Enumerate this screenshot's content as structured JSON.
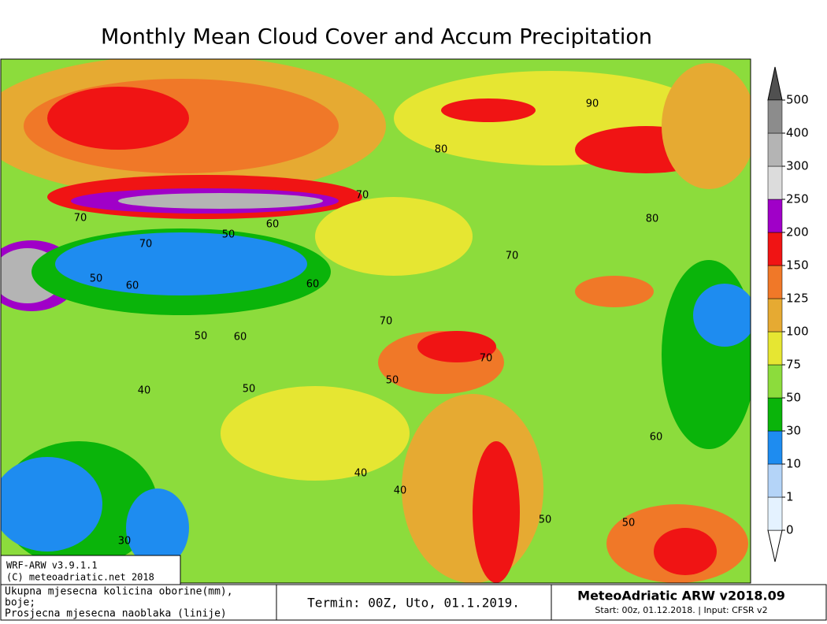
{
  "title": "Monthly Mean Cloud Cover and Accum Precipitation",
  "colorbar": {
    "ticks": [
      0,
      1,
      10,
      30,
      50,
      75,
      100,
      125,
      150,
      200,
      250,
      300,
      400,
      500
    ],
    "colors": [
      "#e4f2ff",
      "#b4d4f8",
      "#1e8cf0",
      "#0ab40a",
      "#8cdc3c",
      "#e6e632",
      "#e6aa32",
      "#f07828",
      "#f01414",
      "#a000c8",
      "#dcdcdc",
      "#b4b4b4",
      "#8c8c8c"
    ],
    "under_color": "#ffffff",
    "over_color": "#505050"
  },
  "contour_labels": [
    "90",
    "80",
    "70",
    "60",
    "50",
    "70",
    "70",
    "50",
    "60",
    "60",
    "70",
    "80",
    "70",
    "70",
    "50",
    "60",
    "50",
    "50",
    "40",
    "40",
    "40",
    "60",
    "50",
    "50",
    "30"
  ],
  "model_box": [
    "WRF-ARW v3.9.1.1",
    "(C) meteoadriatic.net 2018"
  ],
  "legend_box": [
    "Ukupna mjesecna kolicina oborine(mm),",
    "boje;",
    "Prosjecna mjesecna naoblaka (linije)"
  ],
  "termin": "Termin: 00Z, Uto, 01.1.2019.",
  "brand": {
    "title": "MeteoAdriatic ARW v2018.09",
    "subtitle": "Start: 00z, 01.12.2018. | Input: CFSR v2"
  }
}
